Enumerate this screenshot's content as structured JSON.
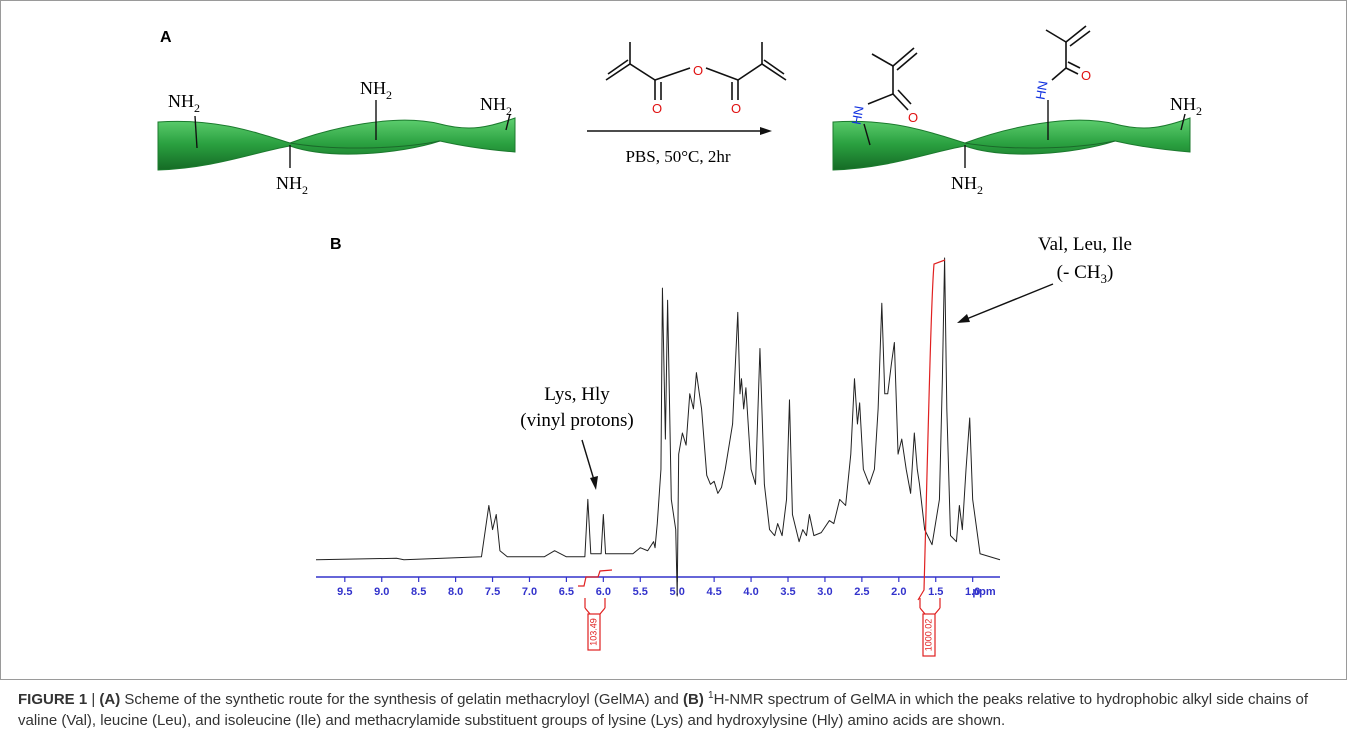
{
  "panel_a": {
    "label": "A",
    "amine_labels": [
      {
        "text": "NH",
        "sub": "2"
      },
      {
        "text": "NH",
        "sub": "2"
      },
      {
        "text": "NH",
        "sub": "2"
      },
      {
        "text": "NH",
        "sub": "2"
      },
      {
        "text": "NH",
        "sub": "2"
      },
      {
        "text": "NH",
        "sub": "2"
      }
    ],
    "reagent_atoms": [
      "O",
      "O",
      "O"
    ],
    "product_atoms": [
      {
        "amide": "HN",
        "oxygen": "O"
      },
      {
        "amide": "HN",
        "oxygen": "O"
      }
    ],
    "conditions": "PBS, 50°C, 2hr"
  },
  "panel_b": {
    "label": "B",
    "annotations": [
      {
        "line1": "Val, Leu, Ile",
        "line2": "(- CH",
        "line2_sub": "3",
        "line2_end": ")"
      },
      {
        "line1": "Lys, Hly",
        "line2": "(vinyl protons)"
      }
    ],
    "integrals": [
      "103.49",
      "1000.02"
    ],
    "chart_data": {
      "type": "line",
      "x_unit": "ppm",
      "xlim": [
        9.89,
        0.63
      ],
      "ylim": [
        -12,
        100
      ],
      "xticks": [
        9.5,
        {
          "value": 9,
          "label": "9.0"
        },
        8.5,
        {
          "value": 8,
          "label": "8.0"
        },
        7.5,
        {
          "value": 7,
          "label": "7.0"
        },
        6.5,
        {
          "value": 6,
          "label": "6.0"
        },
        5.5,
        {
          "value": 5,
          "label": "5.0"
        },
        4.5,
        {
          "value": 4,
          "label": "4.0"
        },
        3.5,
        {
          "value": 3,
          "label": "3.0"
        },
        2.5,
        {
          "value": 2,
          "label": "2.0"
        },
        1.5,
        {
          "value": 1,
          "label": "1.0"
        }
      ],
      "color": "#222222",
      "axis_color": "#3333cc",
      "x": [
        9.89,
        8.8,
        8.7,
        7.65,
        7.55,
        7.5,
        7.45,
        7.4,
        7.3,
        6.8,
        6.66,
        6.5,
        6.25,
        6.21,
        6.17,
        6.03,
        6.0,
        5.97,
        5.6,
        5.5,
        5.4,
        5.32,
        5.3,
        5.27,
        5.22,
        5.2,
        5.16,
        5.13,
        5.08,
        5.02,
        5.0,
        4.98,
        4.93,
        4.88,
        4.83,
        4.78,
        4.74,
        4.7,
        4.67,
        4.6,
        4.55,
        4.5,
        4.45,
        4.4,
        4.35,
        4.25,
        4.18,
        4.15,
        4.13,
        4.1,
        4.07,
        4.0,
        3.94,
        3.88,
        3.82,
        3.75,
        3.68,
        3.64,
        3.58,
        3.52,
        3.48,
        3.44,
        3.35,
        3.3,
        3.25,
        3.21,
        3.15,
        3.05,
        2.94,
        2.88,
        2.8,
        2.72,
        2.65,
        2.6,
        2.56,
        2.53,
        2.48,
        2.4,
        2.33,
        2.28,
        2.23,
        2.19,
        2.15,
        2.1,
        2.06,
        2.01,
        1.96,
        1.9,
        1.84,
        1.79,
        1.75,
        1.72,
        1.65,
        1.55,
        1.45,
        1.41,
        1.38,
        1.35,
        1.3,
        1.22,
        1.18,
        1.14,
        1.09,
        1.04,
        1.0,
        0.9,
        0.63
      ],
      "values": [
        0,
        0.5,
        0,
        1,
        18,
        10,
        15,
        3,
        1,
        1,
        3,
        1,
        1,
        20,
        2,
        2,
        15,
        2,
        2,
        4,
        3,
        6,
        4,
        12,
        30,
        90,
        40,
        86,
        20,
        10,
        -12,
        35,
        42,
        38,
        55,
        50,
        62,
        55,
        50,
        28,
        25,
        26,
        22,
        24,
        30,
        45,
        82,
        55,
        60,
        50,
        57,
        30,
        25,
        70,
        25,
        10,
        8,
        12,
        8,
        20,
        53,
        15,
        6,
        10,
        8,
        15,
        8,
        9,
        13,
        12,
        20,
        18,
        35,
        60,
        45,
        52,
        30,
        25,
        30,
        50,
        85,
        55,
        55,
        65,
        72,
        35,
        40,
        30,
        22,
        42,
        30,
        25,
        10,
        5,
        20,
        60,
        100,
        50,
        8,
        6,
        18,
        10,
        30,
        47,
        20,
        2,
        0
      ]
    }
  },
  "caption": {
    "segments": [
      {
        "text": "FIGURE 1",
        "style": "bold"
      },
      {
        "text": " | ",
        "style": "normal"
      },
      {
        "text": "(A)",
        "style": "bold"
      },
      {
        "text": " Scheme of the synthetic route for the synthesis of gelatin methacryloyl (GelMA) and ",
        "style": "normal"
      },
      {
        "text": "(B) ",
        "style": "bold"
      },
      {
        "text": "1",
        "style": "sup"
      },
      {
        "text": "H-NMR spectrum of GelMA in which the peaks relative to hydrophobic alkyl side chains of valine (Val), leucine (Leu), and isoleucine (Ile) and methacrylamide substituent groups of lysine (Lys) and hydroxylysine (Hly) amino acids are shown.",
        "style": "normal"
      }
    ]
  }
}
